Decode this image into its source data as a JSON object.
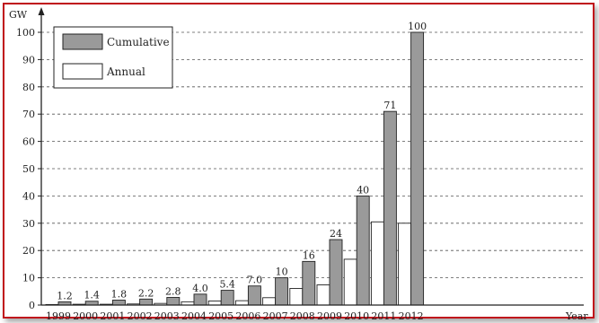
{
  "chart_data": {
    "type": "bar",
    "ylabel": "GW",
    "xlabel": "Year",
    "ylim": [
      0,
      100
    ],
    "y_ticks": [
      0,
      10,
      20,
      30,
      40,
      50,
      60,
      70,
      80,
      90,
      100
    ],
    "grid": "horizontal dashed",
    "legend_position": "top-left",
    "categories": [
      "1999",
      "2000",
      "2001",
      "2002",
      "2003",
      "2004",
      "2005",
      "2006",
      "2007",
      "2008",
      "2009",
      "2010",
      "2011",
      "2012"
    ],
    "series": [
      {
        "name": "Cumulative",
        "color": "#9a9a9a",
        "values": [
          1.2,
          1.4,
          1.8,
          2.2,
          2.8,
          4.0,
          5.4,
          7.0,
          10,
          16,
          24,
          40,
          71,
          100
        ],
        "data_labels": [
          "1.2",
          "1.4",
          "1.8",
          "2.2",
          "2.8",
          "4.0",
          "5.4",
          "7.0",
          "10",
          "16",
          "24",
          "40",
          "71",
          "100"
        ]
      },
      {
        "name": "Annual",
        "color": "#ffffff",
        "values": [
          0.2,
          0.3,
          0.3,
          0.4,
          0.6,
          1.2,
          1.5,
          1.6,
          2.7,
          6.1,
          7.4,
          16.8,
          30.5,
          30
        ]
      }
    ]
  },
  "colors": {
    "frame_border": "#c0141c",
    "axis": "#222222",
    "grid": "#555555"
  }
}
